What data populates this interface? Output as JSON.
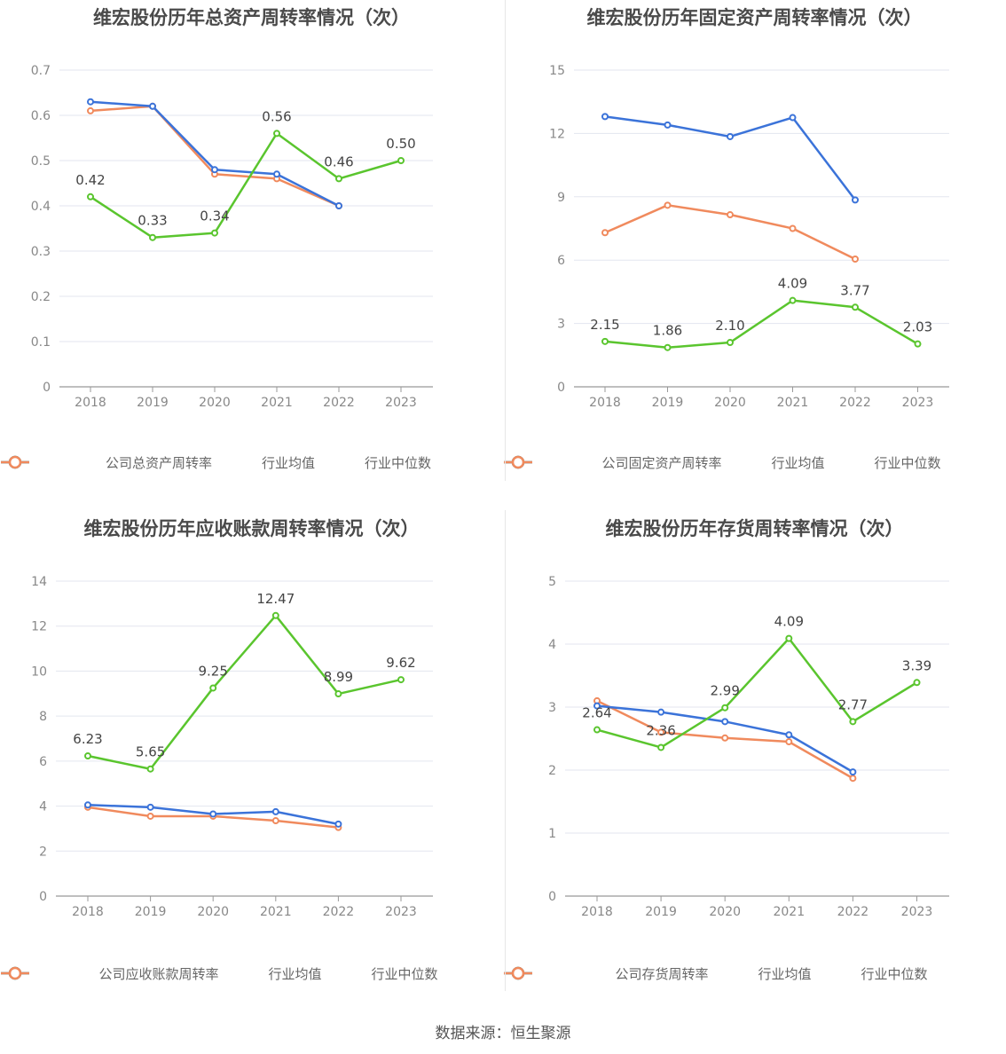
{
  "colors": {
    "company": "#5ac52e",
    "avg": "#3b73d9",
    "median": "#f08a5d",
    "grid": "#e3e6ef",
    "axis": "#888888"
  },
  "legend": {
    "avg": "行业均值",
    "median": "行业中位数"
  },
  "source": "数据来源：恒生聚源",
  "chart_data": [
    {
      "type": "line",
      "title": "维宏股份历年总资产周转率情况（次）",
      "x": [
        "2018",
        "2019",
        "2020",
        "2021",
        "2022",
        "2023"
      ],
      "ylim": [
        0,
        0.7
      ],
      "yticks": [
        "0",
        "0.1",
        "0.2",
        "0.3",
        "0.4",
        "0.5",
        "0.6",
        "0.7"
      ],
      "series": [
        {
          "name": "公司总资产周转率",
          "values": [
            0.42,
            0.33,
            0.34,
            0.56,
            0.46,
            0.5
          ],
          "labels": [
            "0.42",
            "0.33",
            "0.34",
            "0.56",
            "0.46",
            "0.50"
          ]
        },
        {
          "name": "行业均值",
          "values": [
            0.63,
            0.62,
            0.48,
            0.47,
            0.4,
            null
          ]
        },
        {
          "name": "行业中位数",
          "values": [
            0.61,
            0.62,
            0.47,
            0.46,
            0.4,
            null
          ]
        }
      ]
    },
    {
      "type": "line",
      "title": "维宏股份历年固定资产周转率情况（次）",
      "x": [
        "2018",
        "2019",
        "2020",
        "2021",
        "2022",
        "2023"
      ],
      "ylim": [
        0,
        15
      ],
      "yticks": [
        "0",
        "3",
        "6",
        "9",
        "12",
        "15"
      ],
      "series": [
        {
          "name": "公司固定资产周转率",
          "values": [
            2.15,
            1.86,
            2.1,
            4.09,
            3.77,
            2.03
          ],
          "labels": [
            "2.15",
            "1.86",
            "2.10",
            "4.09",
            "3.77",
            "2.03"
          ]
        },
        {
          "name": "行业均值",
          "values": [
            12.8,
            12.4,
            11.85,
            12.75,
            8.85,
            null
          ]
        },
        {
          "name": "行业中位数",
          "values": [
            7.3,
            8.6,
            8.15,
            7.5,
            6.05,
            null
          ]
        }
      ]
    },
    {
      "type": "line",
      "title": "维宏股份历年应收账款周转率情况（次）",
      "x": [
        "2018",
        "2019",
        "2020",
        "2021",
        "2022",
        "2023"
      ],
      "ylim": [
        0,
        14
      ],
      "yticks": [
        "0",
        "2",
        "4",
        "6",
        "8",
        "10",
        "12",
        "14"
      ],
      "series": [
        {
          "name": "公司应收账款周转率",
          "values": [
            6.23,
            5.65,
            9.25,
            12.47,
            8.99,
            9.62
          ],
          "labels": [
            "6.23",
            "5.65",
            "9.25",
            "12.47",
            "8.99",
            "9.62"
          ]
        },
        {
          "name": "行业均值",
          "values": [
            4.05,
            3.95,
            3.65,
            3.75,
            3.2,
            null
          ]
        },
        {
          "name": "行业中位数",
          "values": [
            3.95,
            3.55,
            3.55,
            3.35,
            3.05,
            null
          ]
        }
      ]
    },
    {
      "type": "line",
      "title": "维宏股份历年存货周转率情况（次）",
      "x": [
        "2018",
        "2019",
        "2020",
        "2021",
        "2022",
        "2023"
      ],
      "ylim": [
        0,
        5
      ],
      "yticks": [
        "0",
        "1",
        "2",
        "3",
        "4",
        "5"
      ],
      "series": [
        {
          "name": "公司存货周转率",
          "values": [
            2.64,
            2.36,
            2.99,
            4.09,
            2.77,
            3.39
          ],
          "labels": [
            "2.64",
            "2.36",
            "2.99",
            "4.09",
            "2.77",
            "3.39"
          ]
        },
        {
          "name": "行业均值",
          "values": [
            3.02,
            2.92,
            2.77,
            2.56,
            1.97,
            null
          ]
        },
        {
          "name": "行业中位数",
          "values": [
            3.1,
            2.6,
            2.51,
            2.45,
            1.87,
            null
          ]
        }
      ]
    }
  ]
}
